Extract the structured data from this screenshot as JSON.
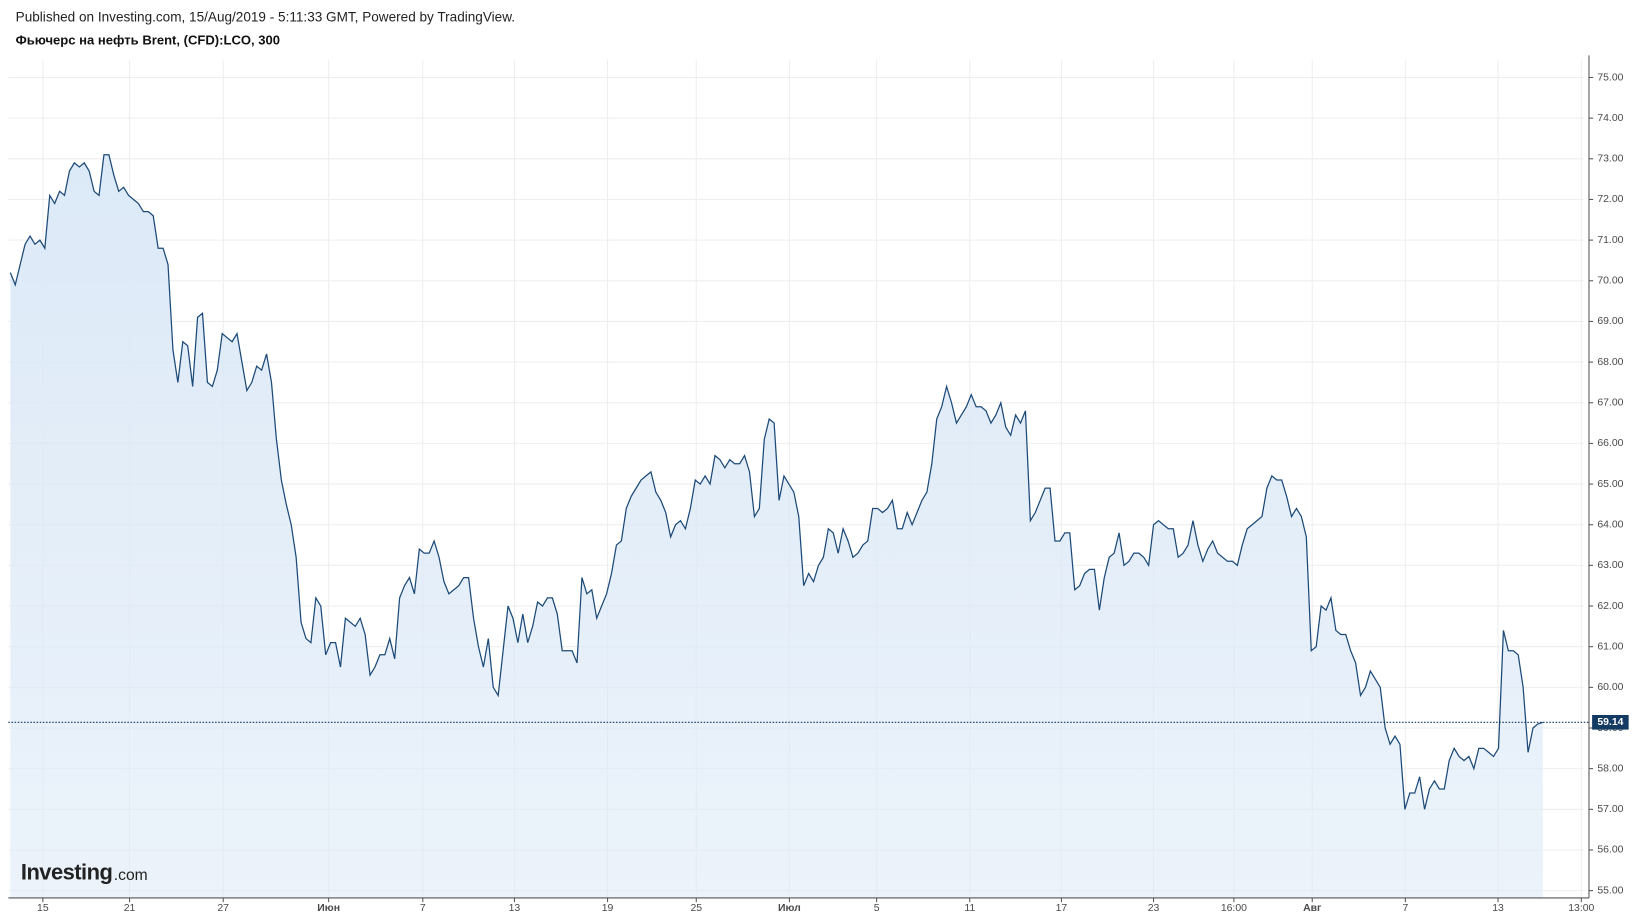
{
  "header": {
    "published": "Published on Investing.com, 15/Aug/2019 - 5:11:33 GMT, Powered by TradingView."
  },
  "chart_data": {
    "type": "area",
    "title": "Фьючерс на нефть Brent, (CFD):LCO, 300",
    "watermark": {
      "brand": "Investing",
      "suffix": ".com"
    },
    "color": "#1c4a78",
    "fill": "#dce9f7",
    "grid": true,
    "values": [
      70.2,
      69.9,
      70.4,
      70.9,
      71.1,
      70.9,
      71.0,
      70.8,
      72.1,
      71.9,
      72.2,
      72.1,
      72.7,
      72.9,
      72.8,
      72.9,
      72.7,
      72.2,
      72.1,
      73.1,
      73.1,
      72.6,
      72.2,
      72.3,
      72.1,
      72.0,
      71.9,
      71.7,
      71.7,
      71.6,
      70.8,
      70.8,
      70.4,
      68.3,
      67.5,
      68.5,
      68.4,
      67.4,
      69.1,
      69.2,
      67.5,
      67.4,
      67.8,
      68.7,
      68.6,
      68.5,
      68.7,
      68.0,
      67.3,
      67.5,
      67.9,
      67.8,
      68.2,
      67.5,
      66.1,
      65.1,
      64.5,
      64.0,
      63.2,
      61.6,
      61.2,
      61.1,
      62.2,
      62.0,
      60.8,
      61.1,
      61.1,
      60.5,
      61.7,
      61.6,
      61.5,
      61.7,
      61.3,
      60.3,
      60.5,
      60.8,
      60.8,
      61.2,
      60.7,
      62.2,
      62.5,
      62.7,
      62.3,
      63.4,
      63.3,
      63.3,
      63.6,
      63.2,
      62.6,
      62.3,
      62.4,
      62.5,
      62.7,
      62.7,
      61.7,
      61.0,
      60.5,
      61.2,
      60.0,
      59.8,
      60.9,
      62.0,
      61.7,
      61.1,
      61.8,
      61.1,
      61.5,
      62.1,
      62.0,
      62.2,
      62.2,
      61.8,
      60.9,
      60.9,
      60.9,
      60.6,
      62.7,
      62.3,
      62.4,
      61.7,
      62.0,
      62.3,
      62.8,
      63.5,
      63.6,
      64.4,
      64.7,
      64.9,
      65.1,
      65.2,
      65.3,
      64.8,
      64.6,
      64.3,
      63.7,
      64.0,
      64.1,
      63.9,
      64.4,
      65.1,
      65.0,
      65.2,
      65.0,
      65.7,
      65.6,
      65.4,
      65.6,
      65.5,
      65.5,
      65.7,
      65.3,
      64.2,
      64.4,
      66.1,
      66.6,
      66.5,
      64.6,
      65.2,
      65.0,
      64.8,
      64.2,
      62.5,
      62.8,
      62.6,
      63.0,
      63.2,
      63.9,
      63.8,
      63.3,
      63.9,
      63.6,
      63.2,
      63.3,
      63.5,
      63.6,
      64.4,
      64.4,
      64.3,
      64.4,
      64.6,
      63.9,
      63.9,
      64.3,
      64.0,
      64.3,
      64.6,
      64.8,
      65.5,
      66.6,
      66.9,
      67.4,
      67.0,
      66.5,
      66.7,
      66.9,
      67.2,
      66.9,
      66.9,
      66.8,
      66.5,
      66.7,
      67.0,
      66.4,
      66.2,
      66.7,
      66.5,
      66.8,
      64.1,
      64.3,
      64.6,
      64.9,
      64.9,
      63.6,
      63.6,
      63.8,
      63.8,
      62.4,
      62.5,
      62.8,
      62.9,
      62.9,
      61.9,
      62.7,
      63.2,
      63.3,
      63.8,
      63.0,
      63.1,
      63.3,
      63.3,
      63.2,
      63.0,
      64.0,
      64.1,
      64.0,
      63.9,
      63.9,
      63.2,
      63.3,
      63.5,
      64.1,
      63.5,
      63.1,
      63.4,
      63.6,
      63.3,
      63.2,
      63.1,
      63.1,
      63.0,
      63.5,
      63.9,
      64.0,
      64.1,
      64.2,
      64.9,
      65.2,
      65.1,
      65.1,
      64.7,
      64.2,
      64.4,
      64.2,
      63.7,
      60.9,
      61.0,
      62.0,
      61.9,
      62.2,
      61.4,
      61.3,
      61.3,
      60.9,
      60.6,
      59.8,
      60.0,
      60.4,
      60.2,
      60.0,
      59.0,
      58.6,
      58.8,
      58.6,
      57.0,
      57.4,
      57.4,
      57.8,
      57.0,
      57.5,
      57.7,
      57.5,
      57.5,
      58.2,
      58.5,
      58.3,
      58.2,
      58.3,
      58.0,
      58.5,
      58.5,
      58.4,
      58.3,
      58.5,
      61.4,
      60.9,
      60.9,
      60.8,
      60.0,
      58.4,
      59.0,
      59.1,
      59.14
    ],
    "xlim": [
      -0.4,
      319.3
    ],
    "xticks": [
      {
        "value": 6.6,
        "label": "15"
      },
      {
        "value": 24.2,
        "label": "21"
      },
      {
        "value": 43.2,
        "label": "27"
      },
      {
        "value": 64.6,
        "label": "Июн"
      },
      {
        "value": 83.7,
        "label": "7"
      },
      {
        "value": 102.3,
        "label": "13"
      },
      {
        "value": 121.2,
        "label": "19"
      },
      {
        "value": 139.2,
        "label": "25"
      },
      {
        "value": 158.1,
        "label": "Июл"
      },
      {
        "value": 175.8,
        "label": "5"
      },
      {
        "value": 194.7,
        "label": "11"
      },
      {
        "value": 213.3,
        "label": "17"
      },
      {
        "value": 232.0,
        "label": "23"
      },
      {
        "value": 248.3,
        "label": "16:00"
      },
      {
        "value": 264.2,
        "label": "Авг"
      },
      {
        "value": 283.1,
        "label": "7"
      },
      {
        "value": 301.9,
        "label": "13"
      },
      {
        "value": 318.8,
        "label": "13:00"
      }
    ],
    "ylim": [
      54.82,
      75.44
    ],
    "yticks": [
      {
        "value": 55,
        "label": "55.00"
      },
      {
        "value": 56,
        "label": "56.00"
      },
      {
        "value": 57,
        "label": "57.00"
      },
      {
        "value": 58,
        "label": "58.00"
      },
      {
        "value": 59,
        "label": "59.00"
      },
      {
        "value": 60,
        "label": "60.00"
      },
      {
        "value": 61,
        "label": "61.00"
      },
      {
        "value": 62,
        "label": "62.00"
      },
      {
        "value": 63,
        "label": "63.00"
      },
      {
        "value": 64,
        "label": "64.00"
      },
      {
        "value": 65,
        "label": "65.00"
      },
      {
        "value": 66,
        "label": "66.00"
      },
      {
        "value": 67,
        "label": "67.00"
      },
      {
        "value": 68,
        "label": "68.00"
      },
      {
        "value": 69,
        "label": "69.00"
      },
      {
        "value": 70,
        "label": "70.00"
      },
      {
        "value": 71,
        "label": "71.00"
      },
      {
        "value": 72,
        "label": "72.00"
      },
      {
        "value": 73,
        "label": "73.00"
      },
      {
        "value": 74,
        "label": "74.00"
      },
      {
        "value": 75,
        "label": "75.00"
      }
    ]
  }
}
